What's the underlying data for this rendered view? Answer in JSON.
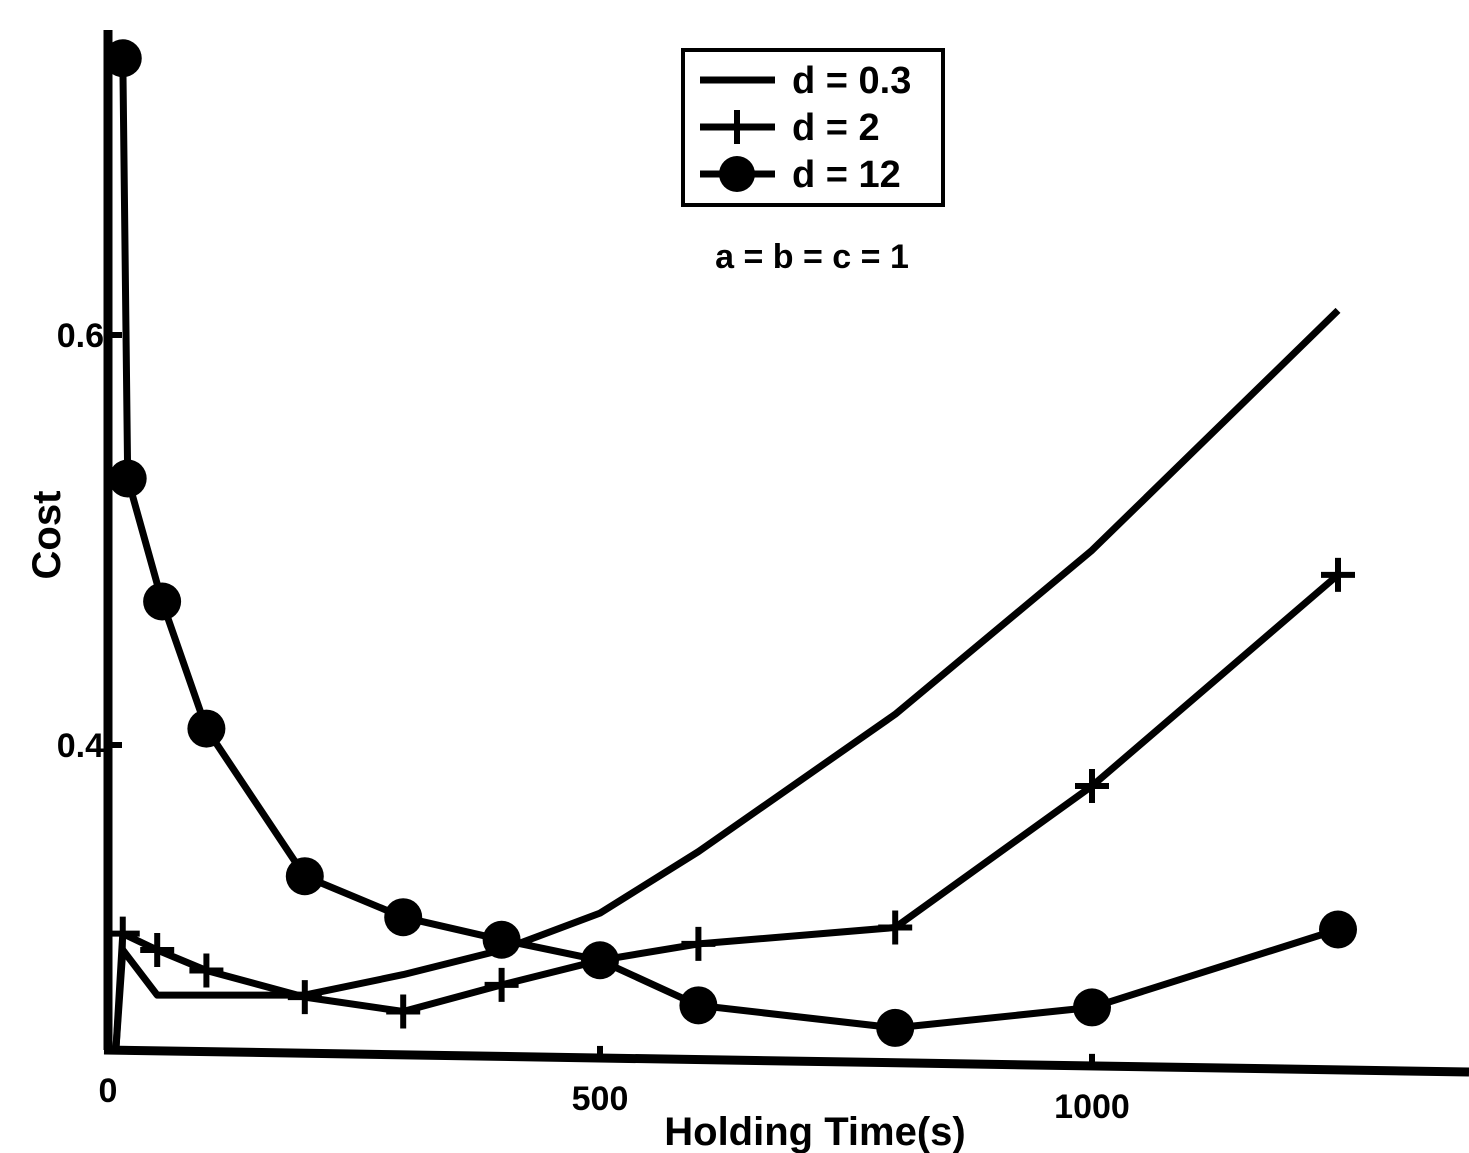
{
  "chart_data": {
    "type": "line",
    "title": "",
    "xlabel": "Holding Time(s)",
    "ylabel": "Cost",
    "xlim": [
      0,
      1400
    ],
    "ylim": [
      0.25,
      0.765
    ],
    "x_ticks": [
      0,
      500,
      1000
    ],
    "x_tick_labels": [
      "0",
      "500",
      "1000"
    ],
    "y_ticks": [
      0.4,
      0.6
    ],
    "y_tick_labels": [
      "0.4",
      "0.6"
    ],
    "grid": false,
    "legend_position": "top-center",
    "annotation": "a = b = c = 1",
    "series": [
      {
        "name": "d = 0.3",
        "marker": "none",
        "x": [
          15,
          50,
          100,
          200,
          300,
          400,
          500,
          600,
          800,
          1000,
          1250
        ],
        "y": [
          0.3,
          0.278,
          0.278,
          0.278,
          0.288,
          0.3,
          0.318,
          0.348,
          0.415,
          0.495,
          0.612
        ]
      },
      {
        "name": "d = 2",
        "marker": "plus",
        "x": [
          15,
          50,
          100,
          200,
          300,
          400,
          500,
          600,
          800,
          1000,
          1250
        ],
        "y": [
          0.308,
          0.3,
          0.29,
          0.277,
          0.27,
          0.283,
          0.295,
          0.303,
          0.311,
          0.38,
          0.483
        ]
      },
      {
        "name": "d = 12",
        "marker": "circle",
        "x": [
          15,
          20,
          55,
          100,
          200,
          300,
          400,
          500,
          600,
          800,
          1000,
          1250
        ],
        "y": [
          0.735,
          0.53,
          0.47,
          0.408,
          0.336,
          0.316,
          0.305,
          0.295,
          0.273,
          0.262,
          0.272,
          0.31
        ]
      }
    ]
  }
}
